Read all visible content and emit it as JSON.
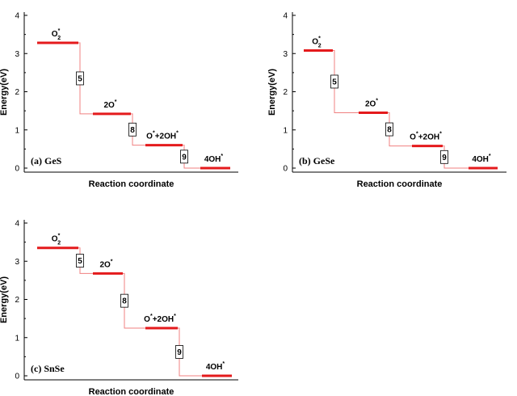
{
  "chart_data": [
    {
      "type": "line",
      "panel_label": "(a) GeS",
      "ylabel": "Energy(eV)",
      "xlabel": "Reaction coordinate",
      "ylim": [
        0,
        4
      ],
      "yticks": [
        "0",
        "1",
        "2",
        "3",
        "4"
      ],
      "states": [
        {
          "main": "O",
          "sup": "*",
          "sub": "2",
          "tail": "",
          "energy": 3.28
        },
        {
          "main": "2O",
          "sup": "*",
          "sub": "",
          "tail": "",
          "energy": 1.42
        },
        {
          "main": "O",
          "sup": "*",
          "sub": "",
          "tail": "+2OH",
          "tail_sup": "*",
          "energy": 0.6
        },
        {
          "main": "4OH",
          "sup": "*",
          "sub": "",
          "tail": "",
          "energy": 0.0
        }
      ],
      "steps": [
        "5",
        "8",
        "9"
      ]
    },
    {
      "type": "line",
      "panel_label": "(b) GeSe",
      "ylabel": "Energy(eV)",
      "xlabel": "Reaction coordinate",
      "ylim": [
        0,
        4
      ],
      "yticks": [
        "0",
        "1",
        "2",
        "3",
        "4"
      ],
      "states": [
        {
          "main": "O",
          "sup": "*",
          "sub": "2",
          "tail": "",
          "energy": 3.08
        },
        {
          "main": "2O",
          "sup": "*",
          "sub": "",
          "tail": "",
          "energy": 1.45
        },
        {
          "main": "O",
          "sup": "*",
          "sub": "",
          "tail": "+2OH",
          "tail_sup": "*",
          "energy": 0.58
        },
        {
          "main": "4OH",
          "sup": "*",
          "sub": "",
          "tail": "",
          "energy": 0.0
        }
      ],
      "steps": [
        "5",
        "8",
        "9"
      ]
    },
    {
      "type": "line",
      "panel_label": "(c) SnSe",
      "ylabel": "Energy(eV)",
      "xlabel": "Reaction coordinate",
      "ylim": [
        0,
        4
      ],
      "yticks": [
        "0",
        "1",
        "2",
        "3",
        "4"
      ],
      "states": [
        {
          "main": "O",
          "sup": "*",
          "sub": "2",
          "tail": "",
          "energy": 3.35
        },
        {
          "main": "2O",
          "sup": "*",
          "sub": "",
          "tail": "",
          "energy": 2.68
        },
        {
          "main": "O",
          "sup": "*",
          "sub": "",
          "tail": "+2OH",
          "tail_sup": "*",
          "energy": 1.25
        },
        {
          "main": "4OH",
          "sup": "*",
          "sub": "",
          "tail": "",
          "energy": 0.0
        }
      ],
      "steps": [
        "5",
        "8",
        "9"
      ]
    }
  ]
}
